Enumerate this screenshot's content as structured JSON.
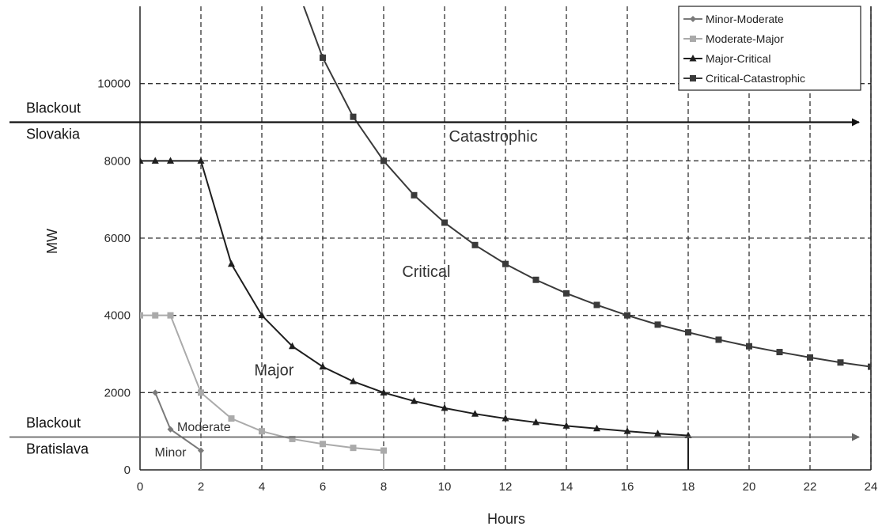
{
  "chart_data": {
    "type": "line",
    "xlabel": "Hours",
    "ylabel": "MW",
    "xlim": [
      0,
      24
    ],
    "ylim": [
      0,
      12000
    ],
    "xticks": [
      "0",
      "2",
      "4",
      "6",
      "8",
      "10",
      "12",
      "14",
      "16",
      "18",
      "20",
      "22",
      "24"
    ],
    "yticks": [
      "0",
      "2000",
      "4000",
      "6000",
      "8000",
      "10000"
    ],
    "grid": true,
    "legend_position": "top-right",
    "series": [
      {
        "name": "Minor-Moderate",
        "color": "#7a7a7a",
        "marker": "diamond",
        "x": [
          0.5,
          1,
          2,
          2
        ],
        "y": [
          2000,
          1050,
          500,
          0
        ]
      },
      {
        "name": "Moderate-Major",
        "color": "#aaaaaa",
        "marker": "square",
        "x": [
          0,
          0.5,
          1,
          2,
          3,
          4,
          5,
          6,
          7,
          8,
          8
        ],
        "y": [
          4000,
          4000,
          4000,
          2000,
          1330,
          1000,
          800,
          670,
          570,
          500,
          0
        ]
      },
      {
        "name": "Major-Critical",
        "color": "#1e1e1e",
        "marker": "triangle",
        "x": [
          0,
          0.5,
          1,
          2,
          3,
          4,
          5,
          6,
          7,
          8,
          9,
          10,
          11,
          12,
          13,
          14,
          15,
          16,
          17,
          18,
          18
        ],
        "y": [
          8000,
          8000,
          8000,
          8000,
          5330,
          4000,
          3200,
          2670,
          2290,
          2000,
          1780,
          1600,
          1450,
          1330,
          1230,
          1140,
          1070,
          1000,
          940,
          890,
          0
        ]
      },
      {
        "name": "Critical-Catastrophic",
        "color": "#3a3a3a",
        "marker": "square",
        "x": [
          5,
          6,
          7,
          8,
          9,
          10,
          11,
          12,
          13,
          14,
          15,
          16,
          17,
          18,
          19,
          20,
          21,
          22,
          23,
          24
        ],
        "y": [
          12800,
          10670,
          9140,
          8000,
          7110,
          6400,
          5820,
          5330,
          4920,
          4570,
          4270,
          4000,
          3760,
          3560,
          3370,
          3200,
          3050,
          2910,
          2780,
          2670
        ]
      }
    ],
    "region_labels": [
      {
        "text": "Catastrophic",
        "x": 11.6,
        "y": 8500
      },
      {
        "text": "Critical",
        "x": 9.4,
        "y": 5000
      },
      {
        "text": "Major",
        "x": 4.4,
        "y": 2450
      },
      {
        "text": "Moderate",
        "x": 2.1,
        "y": 1000
      },
      {
        "text": "Minor",
        "x": 1.0,
        "y": 350
      }
    ],
    "threshold_lines": [
      {
        "label_top": "Blackout",
        "label_bottom": "Slovakia",
        "y": 9000
      },
      {
        "label_top": "Blackout",
        "label_bottom": "Bratislava",
        "y": 850
      }
    ]
  }
}
